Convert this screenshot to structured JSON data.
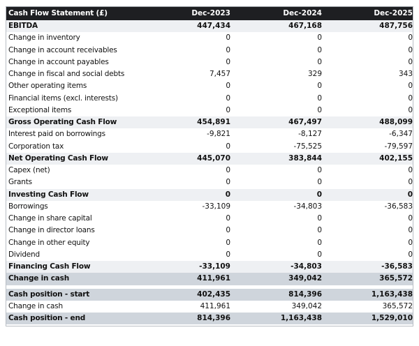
{
  "table": {
    "header": [
      "Cash Flow Statement (£)",
      "Dec-2023",
      "Dec-2024",
      "Dec-2025"
    ],
    "rows": [
      {
        "label": "EBITDA",
        "values": [
          "447,434",
          "467,168",
          "487,756"
        ],
        "style": "bold"
      },
      {
        "label": "Change in inventory",
        "values": [
          "0",
          "0",
          "0"
        ],
        "style": "normal"
      },
      {
        "label": "Change in account receivables",
        "values": [
          "0",
          "0",
          "0"
        ],
        "style": "normal"
      },
      {
        "label": "Change in account payables",
        "values": [
          "0",
          "0",
          "0"
        ],
        "style": "normal"
      },
      {
        "label": "Change in fiscal and social debts",
        "values": [
          "7,457",
          "329",
          "343"
        ],
        "style": "normal"
      },
      {
        "label": "Other operating items",
        "values": [
          "0",
          "0",
          "0"
        ],
        "style": "normal"
      },
      {
        "label": "Financial items (excl. interests)",
        "values": [
          "0",
          "0",
          "0"
        ],
        "style": "normal"
      },
      {
        "label": "Exceptional items",
        "values": [
          "0",
          "0",
          "0"
        ],
        "style": "normal"
      },
      {
        "label": "Gross Operating Cash Flow",
        "values": [
          "454,891",
          "467,497",
          "488,099"
        ],
        "style": "bold"
      },
      {
        "label": "Interest paid on borrowings",
        "values": [
          "-9,821",
          "-8,127",
          "-6,347"
        ],
        "style": "normal"
      },
      {
        "label": "Corporation tax",
        "values": [
          "0",
          "-75,525",
          "-79,597"
        ],
        "style": "normal"
      },
      {
        "label": "Net Operating Cash Flow",
        "values": [
          "445,070",
          "383,844",
          "402,155"
        ],
        "style": "bold"
      },
      {
        "label": "Capex (net)",
        "values": [
          "0",
          "0",
          "0"
        ],
        "style": "normal"
      },
      {
        "label": "Grants",
        "values": [
          "0",
          "0",
          "0"
        ],
        "style": "normal"
      },
      {
        "label": "Investing Cash Flow",
        "values": [
          "0",
          "0",
          "0"
        ],
        "style": "bold"
      },
      {
        "label": "Borrowings",
        "values": [
          "-33,109",
          "-34,803",
          "-36,583"
        ],
        "style": "normal"
      },
      {
        "label": "Change in share capital",
        "values": [
          "0",
          "0",
          "0"
        ],
        "style": "normal"
      },
      {
        "label": "Change in director loans",
        "values": [
          "0",
          "0",
          "0"
        ],
        "style": "normal"
      },
      {
        "label": "Change in other equity",
        "values": [
          "0",
          "0",
          "0"
        ],
        "style": "normal"
      },
      {
        "label": "Dividend",
        "values": [
          "0",
          "0",
          "0"
        ],
        "style": "normal"
      },
      {
        "label": "Financing Cash Flow",
        "values": [
          "-33,109",
          "-34,803",
          "-36,583"
        ],
        "style": "bold"
      },
      {
        "label": "Change in cash",
        "values": [
          "411,961",
          "349,042",
          "365,572"
        ],
        "style": "total"
      },
      {
        "label": "",
        "values": [],
        "style": "gap"
      },
      {
        "label": "Cash position - start",
        "values": [
          "402,435",
          "814,396",
          "1,163,438"
        ],
        "style": "total"
      },
      {
        "label": "Change in cash",
        "values": [
          "411,961",
          "349,042",
          "365,572"
        ],
        "style": "normal"
      },
      {
        "label": "Cash position - end",
        "values": [
          "814,396",
          "1,163,438",
          "1,529,010"
        ],
        "style": "total"
      }
    ]
  },
  "colors": {
    "header_bg": "#1e1f22",
    "subtotal_bg": "#eef0f3",
    "total_bg": "#cfd5dc"
  }
}
